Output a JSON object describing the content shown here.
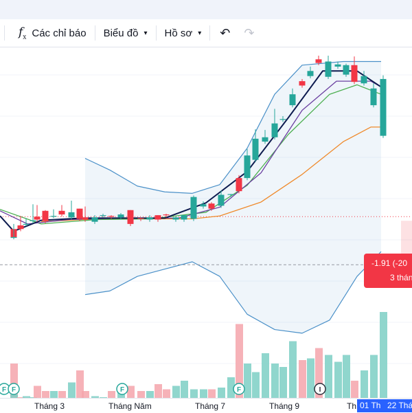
{
  "toolbar": {
    "indicators_label": "Các chỉ báo",
    "chart_type_label": "Biểu đồ",
    "profile_label": "Hồ sơ",
    "icons": [
      "fx-icon",
      "chevron-down-icon",
      "undo-icon",
      "redo-icon"
    ]
  },
  "price_box": {
    "change": "-1.91 (-20",
    "countdown": "3 thán"
  },
  "x_axis": {
    "labels": [
      "Tháng 3",
      "Tháng Năm",
      "Tháng 7",
      "Tháng 9",
      "Th"
    ],
    "highlight_1": "01 Th",
    "highlight_2": "22 Thá"
  },
  "event_markers": [
    "F",
    "F",
    "F",
    "F",
    "I"
  ],
  "colors": {
    "up": "#26a69a",
    "down": "#f23645",
    "ma_fast": "#0d1b4f",
    "ma_mid": "#6a3fa0",
    "ma_slow": "#4caf50",
    "ma_long": "#ef8a2b",
    "band": "#4a90c8",
    "accent": "#2962ff"
  },
  "chart_data": {
    "type": "candlestick",
    "candles": [
      [
        20,
        45,
        34,
        50,
        2
      ],
      [
        20,
        34,
        34,
        52,
        0.2
      ],
      [
        30,
        50,
        45,
        63,
        -0.5
      ],
      [
        38,
        52,
        52,
        60,
        0.1
      ],
      [
        48,
        56,
        57,
        79,
        0
      ],
      [
        54,
        62,
        58,
        78,
        0.7
      ],
      [
        66,
        70,
        56,
        71,
        0.4
      ],
      [
        78,
        63,
        63,
        72,
        0.4
      ],
      [
        90,
        70,
        65,
        78,
        0.4
      ],
      [
        104,
        61,
        68,
        84,
        0.9
      ],
      [
        116,
        73,
        59,
        73,
        1.6
      ],
      [
        124,
        61,
        58,
        76,
        0.4
      ],
      [
        138,
        55,
        61,
        64,
        0.1
      ],
      [
        150,
        64,
        64,
        66,
        0
      ],
      [
        162,
        63,
        62,
        64,
        0.4
      ],
      [
        176,
        61,
        65,
        67,
        0.6
      ],
      [
        190,
        71,
        52,
        71,
        0.7
      ],
      [
        205,
        60,
        59,
        61,
        0.4
      ],
      [
        218,
        58,
        61,
        64,
        0.4
      ],
      [
        230,
        64,
        58,
        64,
        0.8
      ],
      [
        242,
        65,
        64,
        66,
        0.5
      ],
      [
        256,
        58,
        61,
        62,
        0.7
      ],
      [
        268,
        58,
        64,
        64,
        1
      ],
      [
        282,
        59,
        89,
        91,
        0.5
      ],
      [
        296,
        76,
        79,
        83,
        0.5
      ],
      [
        308,
        80,
        73,
        82,
        0.5
      ],
      [
        322,
        77,
        92,
        98,
        0.6
      ],
      [
        336,
        92,
        93,
        93,
        1.2
      ],
      [
        348,
        115,
        97,
        119,
        4.3
      ],
      [
        360,
        115,
        146,
        155,
        2
      ],
      [
        372,
        140,
        169,
        182,
        1.5
      ],
      [
        386,
        165,
        171,
        181,
        2.6
      ],
      [
        400,
        171,
        190,
        210,
        2
      ],
      [
        412,
        195,
        196,
        200,
        1.8
      ],
      [
        426,
        215,
        230,
        238,
        3.3
      ],
      [
        440,
        248,
        242,
        251,
        2.2
      ],
      [
        452,
        255,
        262,
        268,
        2.3
      ],
      [
        464,
        278,
        273,
        283,
        2.9
      ],
      [
        478,
        254,
        275,
        283,
        2.5
      ],
      [
        492,
        268,
        271,
        275,
        2.1
      ],
      [
        504,
        257,
        270,
        272,
        2.5
      ],
      [
        516,
        270,
        247,
        282,
        1
      ],
      [
        530,
        245,
        255,
        262,
        1.6
      ],
      [
        544,
        215,
        238,
        245,
        2.5
      ],
      [
        558,
        173,
        251,
        256,
        5
      ]
    ],
    "ma_fast": [
      [
        0,
        63
      ],
      [
        20,
        42
      ],
      [
        60,
        57
      ],
      [
        120,
        60
      ],
      [
        180,
        60
      ],
      [
        240,
        60
      ],
      [
        300,
        81
      ],
      [
        360,
        124
      ],
      [
        420,
        198
      ],
      [
        470,
        262
      ],
      [
        520,
        262
      ],
      [
        555,
        240
      ]
    ],
    "ma_mid": [
      [
        0,
        70
      ],
      [
        40,
        52
      ],
      [
        100,
        58
      ],
      [
        180,
        60
      ],
      [
        260,
        60
      ],
      [
        320,
        75
      ],
      [
        380,
        122
      ],
      [
        440,
        208
      ],
      [
        490,
        248
      ],
      [
        540,
        248
      ],
      [
        555,
        240
      ]
    ],
    "ma_slow": [
      [
        0,
        72
      ],
      [
        60,
        52
      ],
      [
        140,
        58
      ],
      [
        220,
        59
      ],
      [
        300,
        68
      ],
      [
        360,
        105
      ],
      [
        420,
        175
      ],
      [
        480,
        230
      ],
      [
        520,
        243
      ],
      [
        555,
        230
      ]
    ],
    "ma_long": [
      [
        60,
        55
      ],
      [
        120,
        58
      ],
      [
        200,
        59
      ],
      [
        280,
        59
      ],
      [
        320,
        63
      ],
      [
        380,
        82
      ],
      [
        440,
        120
      ],
      [
        500,
        165
      ],
      [
        540,
        185
      ],
      [
        555,
        185
      ]
    ],
    "band_upper": [
      [
        124,
        142
      ],
      [
        160,
        126
      ],
      [
        200,
        104
      ],
      [
        240,
        96
      ],
      [
        280,
        94
      ],
      [
        320,
        106
      ],
      [
        360,
        156
      ],
      [
        400,
        230
      ],
      [
        440,
        270
      ],
      [
        500,
        275
      ],
      [
        555,
        275
      ]
    ],
    "band_lower": [
      [
        124,
        -45
      ],
      [
        160,
        -40
      ],
      [
        200,
        -20
      ],
      [
        240,
        -10
      ],
      [
        280,
        0
      ],
      [
        320,
        -20
      ],
      [
        360,
        -72
      ],
      [
        400,
        -93
      ],
      [
        440,
        -98
      ],
      [
        480,
        -80
      ],
      [
        520,
        -20
      ],
      [
        555,
        14
      ]
    ],
    "current_price": 62
  }
}
